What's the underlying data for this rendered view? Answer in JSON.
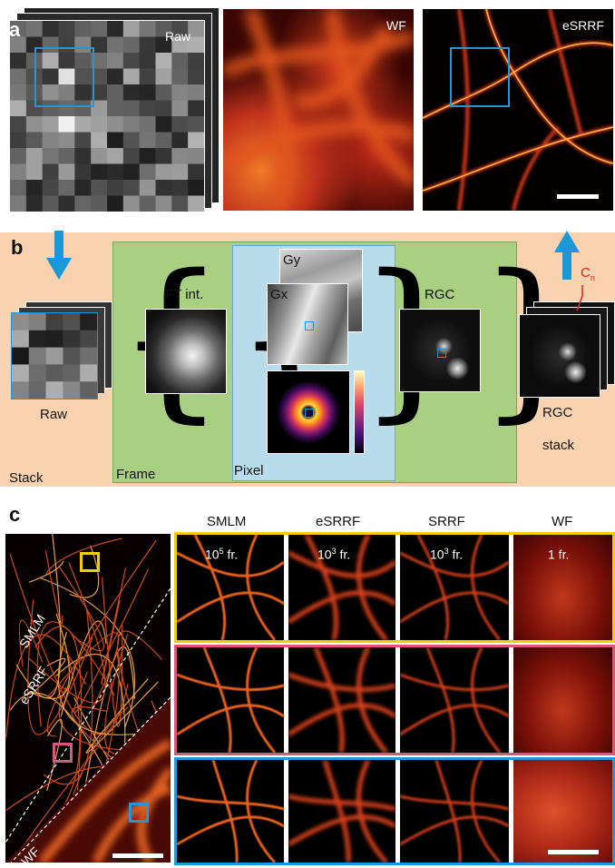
{
  "panel_a": {
    "letter": "a",
    "raw_label": "Raw",
    "wf_label": "WF",
    "esrrf_label": "eSRRF"
  },
  "panel_b": {
    "letter": "b",
    "ft_label": "FT int.",
    "gy_label": "Gy",
    "gx_label": "Gx",
    "rgc_label": "RGC",
    "cn_base": "C",
    "cn_sub": "n",
    "raw_label": "Raw",
    "rgc_stack_line1": "RGC",
    "rgc_stack_line2": "stack",
    "stack_label": "Stack",
    "frame_label": "Frame",
    "pixel_label": "Pixel",
    "colors": {
      "outer_bg": "#f9d3b0",
      "frame_bg": "#a9cf83",
      "pixel_bg": "#b9dcec",
      "arrow": "#1a98d8",
      "cn": "#e02020"
    }
  },
  "panel_c": {
    "letter": "c",
    "col_headers": [
      "SMLM",
      "eSRRF",
      "SRRF",
      "WF"
    ],
    "row1_frames": [
      {
        "base": "10",
        "exp": "5",
        "suffix": " fr."
      },
      {
        "base": "10",
        "exp": "3",
        "suffix": " fr."
      },
      {
        "base": "10",
        "exp": "3",
        "suffix": " fr."
      },
      {
        "base": "1",
        "exp": "",
        "suffix": " fr."
      }
    ],
    "overview_labels": [
      "SMLM",
      "eSRRF",
      "WF"
    ],
    "row_colors": [
      "#f2d000",
      "#d9577f",
      "#2596d4"
    ]
  }
}
